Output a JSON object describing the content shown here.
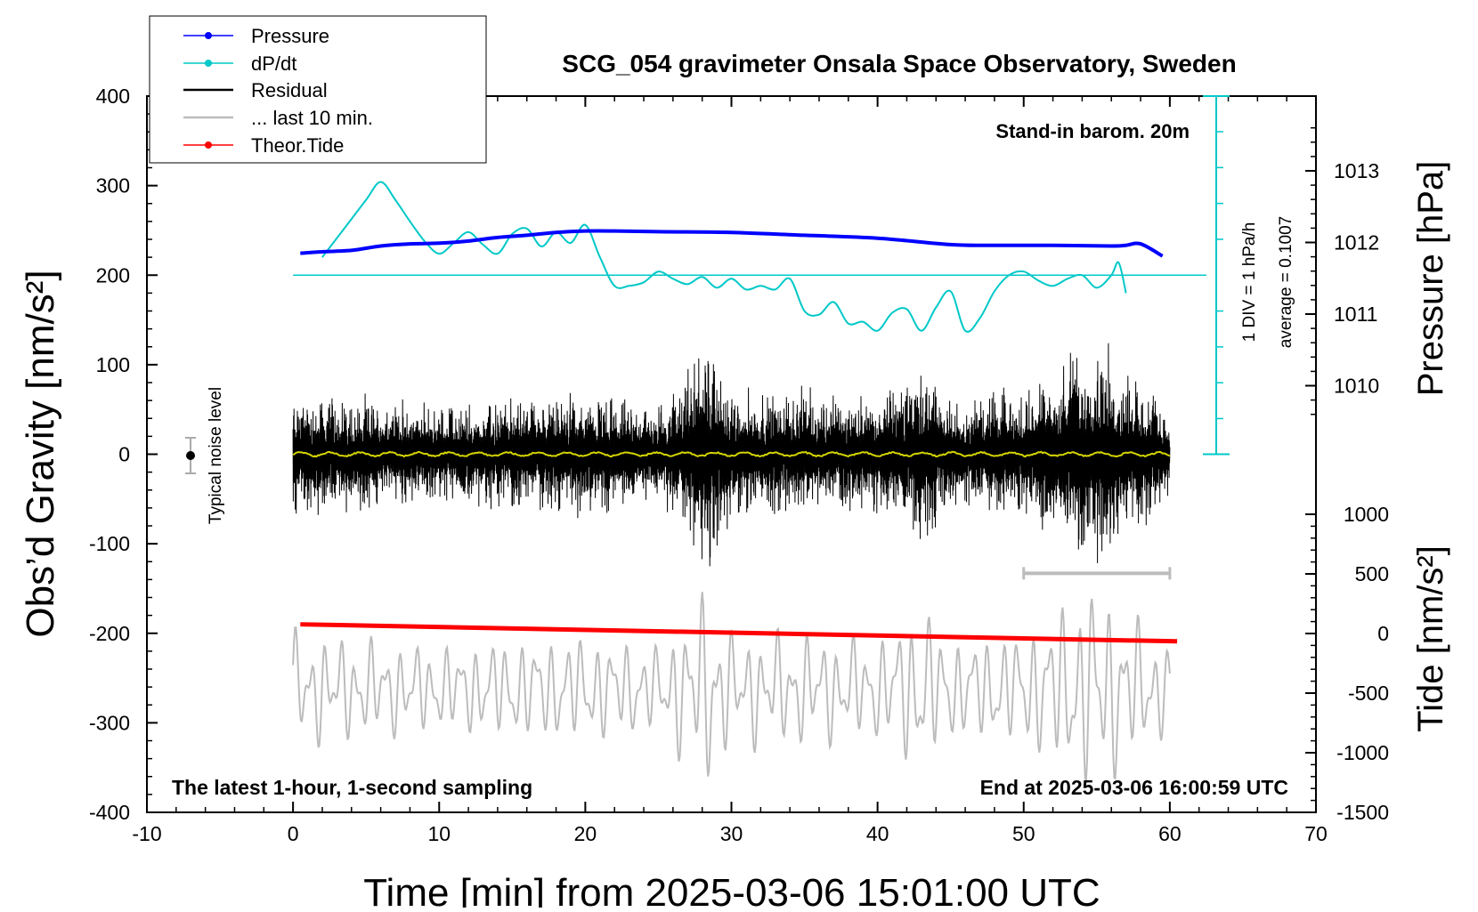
{
  "chart_data": {
    "type": "line",
    "title": "SCG_054 gravimeter Onsala Space Observatory, Sweden",
    "xlabel": "Time [min] from 2025-03-06 15:01:00 UTC",
    "ylabel": "Obs’d Gravity [nm/s²]",
    "ylabel_right_top": "Pressure [hPa]",
    "ylabel_right_bottom": "Tide [nm/s²]",
    "xlim": [
      -10,
      70
    ],
    "ylim": [
      -400,
      400
    ],
    "pressure_ylim": [
      1008,
      1014
    ],
    "tide_ylim": [
      -1500,
      1500
    ],
    "x_ticks": [
      "-10",
      "0",
      "10",
      "20",
      "30",
      "40",
      "50",
      "60",
      "70"
    ],
    "y_ticks": [
      "400",
      "300",
      "200",
      "100",
      "0",
      "-100",
      "-200",
      "-300",
      "-400"
    ],
    "pressure_ticks": [
      "1013",
      "1012",
      "1011",
      "1010"
    ],
    "tide_ticks": [
      "1000",
      "500",
      "0",
      "-500",
      "-1000",
      "-1500"
    ],
    "annotations": {
      "stand_in": "Stand-in barom. 20m",
      "div": "1 DIV = 1 hPa/h",
      "average": "average = 0.1007",
      "noise": "Typical noise level",
      "latest": "The latest 1-hour, 1-second sampling",
      "end": "End at 2025-03-06 16:00:59 UTC"
    },
    "legend": [
      "Pressure",
      "dP/dt",
      "Residual",
      "... last 10 min.",
      "Theor.Tide"
    ],
    "series": [
      {
        "name": "Pressure",
        "color": "#0000ff",
        "unit": "hPa",
        "x": [
          0.5,
          2,
          4,
          6,
          8,
          10,
          12,
          14,
          16,
          18,
          20,
          22,
          25,
          30,
          35,
          40,
          45,
          48,
          52,
          56,
          57,
          58,
          59.5
        ],
        "values": [
          1011.85,
          1011.87,
          1011.89,
          1011.95,
          1011.98,
          1011.99,
          1012.02,
          1012.07,
          1012.1,
          1012.14,
          1012.16,
          1012.16,
          1012.15,
          1012.14,
          1012.1,
          1012.06,
          1011.97,
          1011.96,
          1011.96,
          1011.95,
          1011.96,
          1011.98,
          1011.81
        ]
      },
      {
        "name": "dP/dt",
        "color": "#00c8c8",
        "unit": "hPa/h",
        "x": [
          2,
          3.5,
          5,
          6,
          7,
          8,
          9,
          10,
          11,
          12,
          13,
          14,
          15,
          16,
          17,
          18,
          19,
          20,
          21,
          22,
          23,
          24,
          25,
          26,
          27,
          28,
          29,
          30,
          31,
          32,
          33,
          34,
          35,
          36,
          37,
          38,
          39,
          40,
          41,
          42,
          43,
          44,
          45,
          46,
          47,
          48,
          49,
          50,
          51,
          52,
          53,
          54,
          55,
          56,
          56.5,
          57
        ],
        "values": [
          0.5,
          1.3,
          2.1,
          2.6,
          2.1,
          1.5,
          0.95,
          0.6,
          0.9,
          1.2,
          0.85,
          0.6,
          1.15,
          1.3,
          0.8,
          1.2,
          0.9,
          1.4,
          0.5,
          -0.3,
          -0.3,
          -0.2,
          0.1,
          -0.1,
          -0.25,
          -0.05,
          -0.35,
          -0.1,
          -0.4,
          -0.3,
          -0.4,
          -0.1,
          -1.0,
          -1.1,
          -0.75,
          -1.35,
          -1.3,
          -1.55,
          -1.05,
          -0.95,
          -1.55,
          -0.9,
          -0.45,
          -1.55,
          -1.2,
          -0.45,
          0.0,
          0.1,
          -0.15,
          -0.3,
          -0.1,
          0.0,
          -0.35,
          0.0,
          0.35,
          -0.5
        ]
      },
      {
        "name": "Residual",
        "color": "#000000",
        "unit": "nm/s²",
        "x": [
          0,
          5,
          10,
          15,
          20,
          25,
          28.5,
          30,
          35,
          40,
          43,
          45,
          50,
          54.8,
          60
        ],
        "values": [
          0,
          0,
          0,
          0,
          0,
          0,
          0,
          0,
          0,
          0,
          0,
          0,
          0,
          0,
          0
        ],
        "envelope": [
          80,
          70,
          60,
          70,
          75,
          60,
          145,
          80,
          80,
          70,
          120,
          70,
          80,
          150,
          60
        ]
      },
      {
        "name": "... last 10 min.",
        "color": "#bcbcbc",
        "unit": "nm/s²",
        "x": [
          50,
          60
        ],
        "values": [
          -133,
          -133
        ],
        "trace_range": [
          -390,
          -135
        ]
      },
      {
        "name": "Theor.Tide",
        "color": "#ff0000",
        "unit": "nm/s²",
        "x": [
          0.5,
          60.5
        ],
        "values": [
          -190,
          -209
        ]
      }
    ]
  }
}
